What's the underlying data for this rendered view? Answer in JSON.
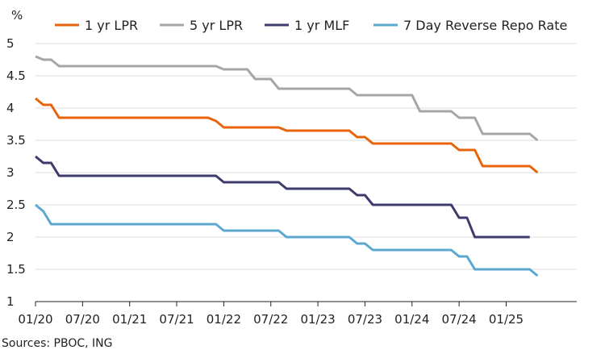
{
  "source_note": "Sources: PBOC, ING",
  "chart_data": {
    "type": "line",
    "y_unit": "%",
    "ylim": [
      1,
      5
    ],
    "yticks": [
      "1",
      "1.5",
      "2",
      "2.5",
      "3",
      "3.5",
      "4",
      "4.5",
      "5"
    ],
    "xlim": [
      "2020-01",
      "2025-10"
    ],
    "xtick_labels": [
      "01/20",
      "07/20",
      "01/21",
      "07/21",
      "01/22",
      "07/22",
      "01/23",
      "07/23",
      "01/24",
      "07/24",
      "01/25"
    ],
    "grid": "horizontal",
    "legend_position": "top",
    "series": [
      {
        "name": "1 yr LPR",
        "color": "#E8640C",
        "points": [
          [
            "2020-01",
            4.15
          ],
          [
            "2020-02",
            4.05
          ],
          [
            "2020-03",
            4.05
          ],
          [
            "2020-04",
            3.85
          ],
          [
            "2021-11",
            3.85
          ],
          [
            "2021-12",
            3.8
          ],
          [
            "2022-01",
            3.7
          ],
          [
            "2022-08",
            3.7
          ],
          [
            "2022-09",
            3.65
          ],
          [
            "2023-05",
            3.65
          ],
          [
            "2023-06",
            3.55
          ],
          [
            "2023-07",
            3.55
          ],
          [
            "2023-08",
            3.45
          ],
          [
            "2024-06",
            3.45
          ],
          [
            "2024-07",
            3.35
          ],
          [
            "2024-09",
            3.35
          ],
          [
            "2024-10",
            3.1
          ],
          [
            "2025-04",
            3.1
          ],
          [
            "2025-05",
            3.0
          ]
        ]
      },
      {
        "name": "5 yr LPR",
        "color": "#A6A6A6",
        "points": [
          [
            "2020-01",
            4.8
          ],
          [
            "2020-02",
            4.75
          ],
          [
            "2020-03",
            4.75
          ],
          [
            "2020-04",
            4.65
          ],
          [
            "2021-12",
            4.65
          ],
          [
            "2022-01",
            4.6
          ],
          [
            "2022-04",
            4.6
          ],
          [
            "2022-05",
            4.45
          ],
          [
            "2022-07",
            4.45
          ],
          [
            "2022-08",
            4.3
          ],
          [
            "2023-05",
            4.3
          ],
          [
            "2023-06",
            4.2
          ],
          [
            "2024-01",
            4.2
          ],
          [
            "2024-02",
            3.95
          ],
          [
            "2024-06",
            3.95
          ],
          [
            "2024-07",
            3.85
          ],
          [
            "2024-09",
            3.85
          ],
          [
            "2024-10",
            3.6
          ],
          [
            "2025-04",
            3.6
          ],
          [
            "2025-05",
            3.5
          ]
        ]
      },
      {
        "name": "1 yr MLF",
        "color": "#3D3B6B",
        "points": [
          [
            "2020-01",
            3.25
          ],
          [
            "2020-02",
            3.15
          ],
          [
            "2020-03",
            3.15
          ],
          [
            "2020-04",
            2.95
          ],
          [
            "2021-12",
            2.95
          ],
          [
            "2022-01",
            2.85
          ],
          [
            "2022-08",
            2.85
          ],
          [
            "2022-09",
            2.75
          ],
          [
            "2023-05",
            2.75
          ],
          [
            "2023-06",
            2.65
          ],
          [
            "2023-07",
            2.65
          ],
          [
            "2023-08",
            2.5
          ],
          [
            "2024-06",
            2.5
          ],
          [
            "2024-07",
            2.3
          ],
          [
            "2024-08",
            2.3
          ],
          [
            "2024-09",
            2.0
          ],
          [
            "2025-04",
            2.0
          ]
        ]
      },
      {
        "name": "7 Day Reverse Repo Rate",
        "color": "#5BA8CF",
        "points": [
          [
            "2020-01",
            2.5
          ],
          [
            "2020-02",
            2.4
          ],
          [
            "2020-03",
            2.2
          ],
          [
            "2021-12",
            2.2
          ],
          [
            "2022-01",
            2.1
          ],
          [
            "2022-08",
            2.1
          ],
          [
            "2022-09",
            2.0
          ],
          [
            "2023-05",
            2.0
          ],
          [
            "2023-06",
            1.9
          ],
          [
            "2023-07",
            1.9
          ],
          [
            "2023-08",
            1.8
          ],
          [
            "2024-06",
            1.8
          ],
          [
            "2024-07",
            1.7
          ],
          [
            "2024-08",
            1.7
          ],
          [
            "2024-09",
            1.5
          ],
          [
            "2025-04",
            1.5
          ],
          [
            "2025-05",
            1.4
          ]
        ]
      }
    ]
  }
}
